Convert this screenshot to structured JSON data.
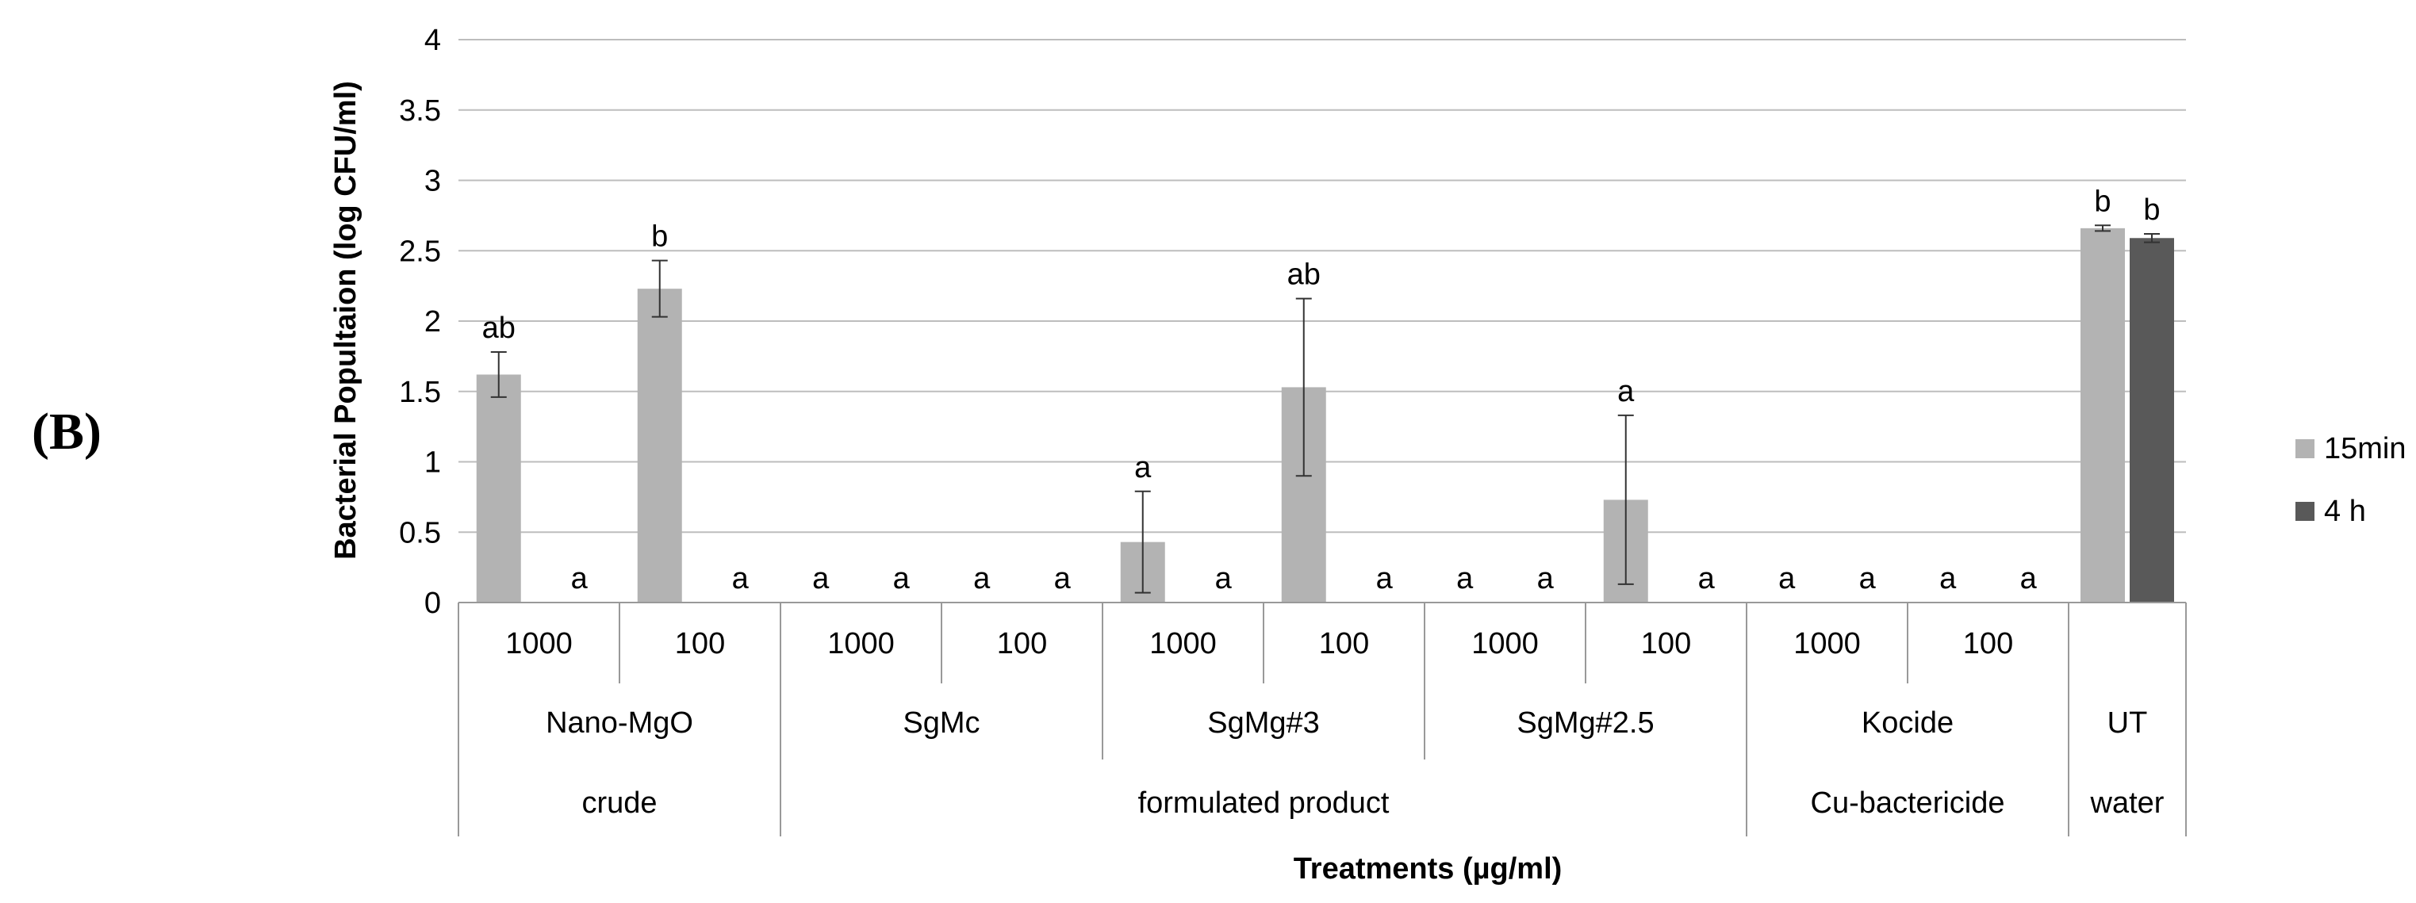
{
  "panel_label": "(B)",
  "chart_data": {
    "type": "bar",
    "title": "",
    "ylabel": "Bacterial Popultaion (log CFU/ml)",
    "xlabel": "Treatments (µg/ml)",
    "ylim": [
      0,
      4
    ],
    "yticks": [
      "0",
      "0.5",
      "1",
      "1.5",
      "2",
      "2.5",
      "3",
      "3.5",
      "4"
    ],
    "grid": true,
    "legend_position": "right",
    "categories": [
      {
        "dose": "1000",
        "treatment": "Nano-MgO"
      },
      {
        "dose": "100",
        "treatment": "Nano-MgO"
      },
      {
        "dose": "1000",
        "treatment": "SgMc"
      },
      {
        "dose": "100",
        "treatment": "SgMc"
      },
      {
        "dose": "1000",
        "treatment": "SgMg#3"
      },
      {
        "dose": "100",
        "treatment": "SgMg#3"
      },
      {
        "dose": "1000",
        "treatment": "SgMg#2.5"
      },
      {
        "dose": "100",
        "treatment": "SgMg#2.5"
      },
      {
        "dose": "1000",
        "treatment": "Kocide"
      },
      {
        "dose": "100",
        "treatment": "Kocide"
      },
      {
        "dose": "",
        "treatment": "UT"
      }
    ],
    "treatments": [
      {
        "name": "Nano-MgO",
        "span": 2
      },
      {
        "name": "SgMc",
        "span": 2
      },
      {
        "name": "SgMg#3",
        "span": 2
      },
      {
        "name": "SgMg#2.5",
        "span": 2
      },
      {
        "name": "Kocide",
        "span": 2
      },
      {
        "name": "UT",
        "span": 1
      }
    ],
    "groups": [
      {
        "name": "crude",
        "span": 2
      },
      {
        "name": "formulated product",
        "span": 6
      },
      {
        "name": "Cu-bactericide",
        "span": 2
      },
      {
        "name": "water",
        "span": 1
      }
    ],
    "series": [
      {
        "name": "15min",
        "color": "#b3b3b3",
        "values": [
          1.62,
          2.23,
          0,
          0,
          0.43,
          1.53,
          0,
          0.73,
          0,
          0,
          2.66
        ],
        "errors": [
          0.16,
          0.2,
          0,
          0,
          0.36,
          0.63,
          0,
          0.6,
          0,
          0,
          0.02
        ],
        "letters": [
          "ab",
          "b",
          "a",
          "a",
          "a",
          "ab",
          "a",
          "a",
          "a",
          "a",
          "b"
        ]
      },
      {
        "name": "4 h",
        "color": "#595959",
        "values": [
          0,
          0,
          0,
          0,
          0,
          0,
          0,
          0,
          0,
          0,
          2.59
        ],
        "errors": [
          0,
          0,
          0,
          0,
          0,
          0,
          0,
          0,
          0,
          0,
          0.03
        ],
        "letters": [
          "a",
          "a",
          "a",
          "a",
          "a",
          "a",
          "a",
          "a",
          "a",
          "a",
          "b"
        ]
      }
    ]
  }
}
